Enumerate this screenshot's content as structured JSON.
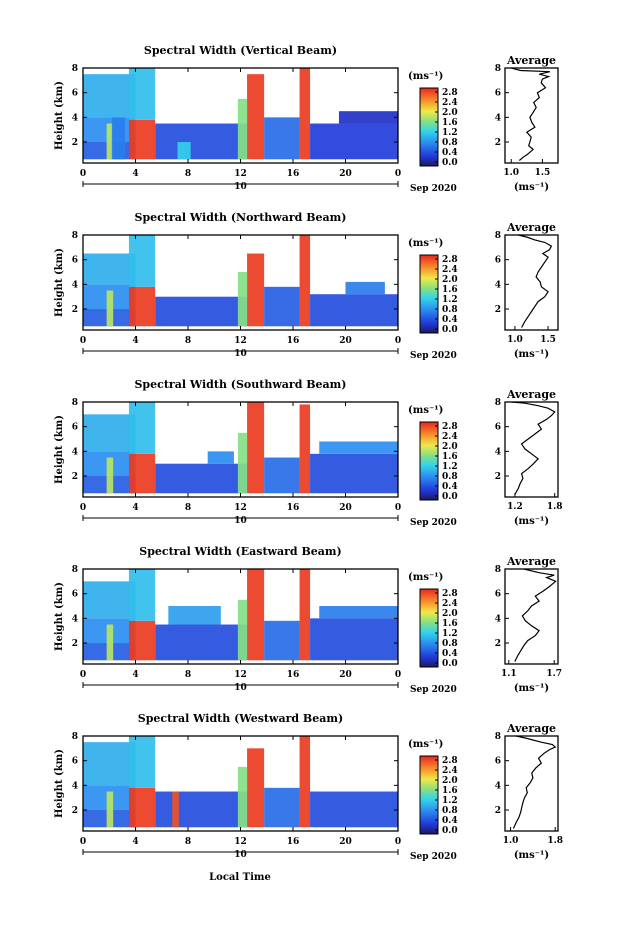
{
  "xlabel": "Local Time",
  "date_label": "Sep 2020",
  "day_label": "10",
  "chart_data": [
    {
      "type": "heatmap",
      "title": "Spectral Width (Vertical Beam)",
      "ylabel": "Height (km)",
      "xticks": [
        "0",
        "4",
        "8",
        "12",
        "16",
        "20",
        "0"
      ],
      "yticks": [
        "2",
        "4",
        "6",
        "8"
      ],
      "xlim": [
        0,
        24
      ],
      "ylim": [
        0.3,
        8
      ],
      "colorbar_unit": "(ms⁻¹)",
      "colorbar_ticks": [
        "0.0",
        "0.4",
        "0.8",
        "1.2",
        "1.6",
        "2.0",
        "2.4",
        "2.8"
      ],
      "clim": [
        0,
        3.0
      ],
      "cells": [
        {
          "t0": 0.0,
          "t1": 4.0,
          "h0": 0.6,
          "h1": 2.0,
          "v": 0.6
        },
        {
          "t0": 0.0,
          "t1": 4.0,
          "h0": 2.0,
          "h1": 4.0,
          "v": 0.9
        },
        {
          "t0": 0.0,
          "t1": 4.0,
          "h0": 4.0,
          "h1": 7.5,
          "v": 1.1
        },
        {
          "t0": 1.8,
          "t1": 2.3,
          "h0": 0.6,
          "h1": 3.5,
          "v": 1.9
        },
        {
          "t0": 2.2,
          "t1": 3.2,
          "h0": 0.6,
          "h1": 4.0,
          "v": 0.8
        },
        {
          "t0": 3.5,
          "t1": 5.5,
          "h0": 0.6,
          "h1": 3.8,
          "v": 2.9
        },
        {
          "t0": 3.5,
          "t1": 5.5,
          "h0": 3.8,
          "h1": 8.0,
          "v": 1.2
        },
        {
          "t0": 5.5,
          "t1": 12.5,
          "h0": 0.6,
          "h1": 3.5,
          "v": 0.5
        },
        {
          "t0": 7.2,
          "t1": 8.2,
          "h0": 0.6,
          "h1": 2.0,
          "v": 1.3
        },
        {
          "t0": 12.5,
          "t1": 13.8,
          "h0": 0.6,
          "h1": 7.5,
          "v": 2.9
        },
        {
          "t0": 11.8,
          "t1": 12.5,
          "h0": 0.6,
          "h1": 5.5,
          "v": 1.7
        },
        {
          "t0": 13.8,
          "t1": 16.5,
          "h0": 0.6,
          "h1": 4.0,
          "v": 0.7
        },
        {
          "t0": 16.5,
          "t1": 17.3,
          "h0": 0.6,
          "h1": 8.0,
          "v": 2.9
        },
        {
          "t0": 17.3,
          "t1": 24.0,
          "h0": 0.6,
          "h1": 3.5,
          "v": 0.4
        },
        {
          "t0": 19.5,
          "t1": 24.0,
          "h0": 3.5,
          "h1": 4.5,
          "v": 0.3
        }
      ],
      "average": {
        "title": "Average",
        "xlabel": "(ms⁻¹)",
        "xticks": [
          "1.0",
          "1.5"
        ],
        "xlim": [
          0.9,
          1.75
        ],
        "ylim": [
          0.3,
          8
        ],
        "x": [
          1.13,
          1.2,
          1.26,
          1.35,
          1.28,
          1.3,
          1.32,
          1.25,
          1.38,
          1.33,
          1.3,
          1.35,
          1.4,
          1.36,
          1.45,
          1.42,
          1.55,
          1.48,
          1.5,
          1.6,
          1.45,
          1.62,
          1.15,
          1.0
        ],
        "y": [
          0.5,
          0.8,
          1.0,
          1.4,
          1.7,
          2.0,
          2.4,
          2.8,
          3.2,
          3.6,
          4.0,
          4.4,
          4.8,
          5.2,
          5.6,
          6.0,
          6.4,
          6.8,
          7.1,
          7.3,
          7.5,
          7.7,
          7.8,
          8.0
        ]
      }
    },
    {
      "type": "heatmap",
      "title": "Spectral Width (Northward Beam)",
      "ylabel": "Height (km)",
      "xticks": [
        "0",
        "4",
        "8",
        "12",
        "16",
        "20",
        "0"
      ],
      "yticks": [
        "2",
        "4",
        "6",
        "8"
      ],
      "xlim": [
        0,
        24
      ],
      "ylim": [
        0.3,
        8
      ],
      "colorbar_unit": "(ms⁻¹)",
      "colorbar_ticks": [
        "0.0",
        "0.4",
        "0.8",
        "1.2",
        "1.6",
        "2.0",
        "2.4",
        "2.8"
      ],
      "clim": [
        0,
        3.0
      ],
      "cells": [
        {
          "t0": 0.0,
          "t1": 4.0,
          "h0": 0.6,
          "h1": 2.0,
          "v": 0.6
        },
        {
          "t0": 0.0,
          "t1": 4.0,
          "h0": 2.0,
          "h1": 4.0,
          "v": 0.9
        },
        {
          "t0": 0.0,
          "t1": 4.0,
          "h0": 4.0,
          "h1": 6.5,
          "v": 1.1
        },
        {
          "t0": 1.8,
          "t1": 2.3,
          "h0": 0.6,
          "h1": 3.5,
          "v": 1.9
        },
        {
          "t0": 3.5,
          "t1": 5.5,
          "h0": 0.6,
          "h1": 3.8,
          "v": 2.9
        },
        {
          "t0": 3.5,
          "t1": 5.5,
          "h0": 3.8,
          "h1": 8.0,
          "v": 1.2
        },
        {
          "t0": 5.5,
          "t1": 12.5,
          "h0": 0.6,
          "h1": 3.0,
          "v": 0.5
        },
        {
          "t0": 12.5,
          "t1": 13.8,
          "h0": 0.6,
          "h1": 6.5,
          "v": 2.9
        },
        {
          "t0": 11.8,
          "t1": 12.5,
          "h0": 0.6,
          "h1": 5.0,
          "v": 1.7
        },
        {
          "t0": 13.8,
          "t1": 16.5,
          "h0": 0.6,
          "h1": 3.8,
          "v": 0.6
        },
        {
          "t0": 16.5,
          "t1": 17.3,
          "h0": 0.6,
          "h1": 8.0,
          "v": 2.9
        },
        {
          "t0": 17.3,
          "t1": 24.0,
          "h0": 0.6,
          "h1": 3.2,
          "v": 0.5
        },
        {
          "t0": 20.0,
          "t1": 23.0,
          "h0": 3.2,
          "h1": 4.2,
          "v": 0.8
        }
      ],
      "average": {
        "title": "Average",
        "xlabel": "(ms⁻¹)",
        "xticks": [
          "1.0",
          "1.5"
        ],
        "xlim": [
          0.85,
          1.65
        ],
        "ylim": [
          0.3,
          8
        ],
        "x": [
          1.1,
          1.15,
          1.2,
          1.25,
          1.3,
          1.35,
          1.45,
          1.5,
          1.4,
          1.38,
          1.32,
          1.35,
          1.4,
          1.45,
          1.5,
          1.42,
          1.52,
          1.55,
          1.45,
          1.3,
          1.2,
          1.05
        ],
        "y": [
          0.5,
          1.0,
          1.4,
          1.8,
          2.2,
          2.6,
          3.0,
          3.4,
          3.8,
          4.2,
          4.6,
          5.0,
          5.4,
          5.8,
          6.2,
          6.5,
          6.8,
          7.1,
          7.4,
          7.6,
          7.8,
          8.0
        ]
      }
    },
    {
      "type": "heatmap",
      "title": "Spectral Width (Southward Beam)",
      "ylabel": "Height (km)",
      "xticks": [
        "0",
        "4",
        "8",
        "12",
        "16",
        "20",
        "0"
      ],
      "yticks": [
        "2",
        "4",
        "6",
        "8"
      ],
      "xlim": [
        0,
        24
      ],
      "ylim": [
        0.3,
        8
      ],
      "colorbar_unit": "(ms⁻¹)",
      "colorbar_ticks": [
        "0.0",
        "0.4",
        "0.8",
        "1.2",
        "1.6",
        "2.0",
        "2.4",
        "2.8"
      ],
      "clim": [
        0,
        3.0
      ],
      "cells": [
        {
          "t0": 0.0,
          "t1": 4.0,
          "h0": 0.6,
          "h1": 2.0,
          "v": 0.6
        },
        {
          "t0": 0.0,
          "t1": 4.0,
          "h0": 2.0,
          "h1": 4.0,
          "v": 0.9
        },
        {
          "t0": 0.0,
          "t1": 4.0,
          "h0": 4.0,
          "h1": 7.0,
          "v": 1.1
        },
        {
          "t0": 1.8,
          "t1": 2.3,
          "h0": 0.6,
          "h1": 3.5,
          "v": 1.9
        },
        {
          "t0": 3.5,
          "t1": 5.5,
          "h0": 0.6,
          "h1": 3.8,
          "v": 2.9
        },
        {
          "t0": 3.5,
          "t1": 5.5,
          "h0": 3.8,
          "h1": 8.0,
          "v": 1.2
        },
        {
          "t0": 5.5,
          "t1": 12.5,
          "h0": 0.6,
          "h1": 3.0,
          "v": 0.5
        },
        {
          "t0": 9.5,
          "t1": 11.5,
          "h0": 3.0,
          "h1": 4.0,
          "v": 0.9
        },
        {
          "t0": 12.5,
          "t1": 13.8,
          "h0": 0.6,
          "h1": 8.0,
          "v": 2.9
        },
        {
          "t0": 11.8,
          "t1": 12.5,
          "h0": 0.6,
          "h1": 5.5,
          "v": 1.7
        },
        {
          "t0": 13.8,
          "t1": 16.5,
          "h0": 0.6,
          "h1": 3.5,
          "v": 0.7
        },
        {
          "t0": 16.5,
          "t1": 17.3,
          "h0": 0.6,
          "h1": 7.8,
          "v": 2.9
        },
        {
          "t0": 17.3,
          "t1": 24.0,
          "h0": 0.6,
          "h1": 3.8,
          "v": 0.5
        },
        {
          "t0": 18.0,
          "t1": 24.0,
          "h0": 3.8,
          "h1": 4.8,
          "v": 0.9
        }
      ],
      "average": {
        "title": "Average",
        "xlabel": "(ms⁻¹)",
        "xticks": [
          "1.2",
          "1.8"
        ],
        "xlim": [
          1.05,
          1.85
        ],
        "ylim": [
          0.3,
          8
        ],
        "x": [
          1.2,
          1.25,
          1.28,
          1.32,
          1.3,
          1.4,
          1.48,
          1.55,
          1.45,
          1.35,
          1.3,
          1.4,
          1.5,
          1.6,
          1.55,
          1.68,
          1.75,
          1.8,
          1.7,
          1.55,
          1.35,
          1.15
        ],
        "y": [
          0.5,
          1.0,
          1.4,
          1.8,
          2.2,
          2.6,
          3.0,
          3.4,
          3.8,
          4.2,
          4.6,
          5.0,
          5.4,
          5.8,
          6.2,
          6.6,
          6.9,
          7.2,
          7.5,
          7.7,
          7.9,
          8.0
        ]
      }
    },
    {
      "type": "heatmap",
      "title": "Spectral Width (Eastward Beam)",
      "ylabel": "Height (km)",
      "xticks": [
        "0",
        "4",
        "8",
        "12",
        "16",
        "20",
        "0"
      ],
      "yticks": [
        "2",
        "4",
        "6",
        "8"
      ],
      "xlim": [
        0,
        24
      ],
      "ylim": [
        0.3,
        8
      ],
      "colorbar_unit": "(ms⁻¹)",
      "colorbar_ticks": [
        "0.0",
        "0.4",
        "0.8",
        "1.2",
        "1.6",
        "2.0",
        "2.4",
        "2.8"
      ],
      "clim": [
        0,
        3.0
      ],
      "cells": [
        {
          "t0": 0.0,
          "t1": 4.0,
          "h0": 0.6,
          "h1": 2.0,
          "v": 0.6
        },
        {
          "t0": 0.0,
          "t1": 4.0,
          "h0": 2.0,
          "h1": 4.0,
          "v": 0.9
        },
        {
          "t0": 0.0,
          "t1": 4.0,
          "h0": 4.0,
          "h1": 7.0,
          "v": 1.1
        },
        {
          "t0": 1.8,
          "t1": 2.3,
          "h0": 0.6,
          "h1": 3.5,
          "v": 1.9
        },
        {
          "t0": 3.5,
          "t1": 5.5,
          "h0": 0.6,
          "h1": 3.8,
          "v": 2.9
        },
        {
          "t0": 3.5,
          "t1": 5.5,
          "h0": 3.8,
          "h1": 8.0,
          "v": 1.2
        },
        {
          "t0": 5.5,
          "t1": 12.5,
          "h0": 0.6,
          "h1": 3.5,
          "v": 0.5
        },
        {
          "t0": 6.5,
          "t1": 10.5,
          "h0": 3.5,
          "h1": 5.0,
          "v": 1.0
        },
        {
          "t0": 12.5,
          "t1": 13.8,
          "h0": 0.6,
          "h1": 8.0,
          "v": 2.9
        },
        {
          "t0": 11.8,
          "t1": 12.5,
          "h0": 0.6,
          "h1": 5.5,
          "v": 1.7
        },
        {
          "t0": 13.8,
          "t1": 16.5,
          "h0": 0.6,
          "h1": 3.8,
          "v": 0.7
        },
        {
          "t0": 16.5,
          "t1": 17.3,
          "h0": 0.6,
          "h1": 8.0,
          "v": 2.9
        },
        {
          "t0": 17.3,
          "t1": 24.0,
          "h0": 0.6,
          "h1": 4.0,
          "v": 0.5
        },
        {
          "t0": 18.0,
          "t1": 24.0,
          "h0": 4.0,
          "h1": 5.0,
          "v": 0.8
        }
      ],
      "average": {
        "title": "Average",
        "xlabel": "(ms⁻¹)",
        "xticks": [
          "1.1",
          "1.7"
        ],
        "xlim": [
          1.05,
          1.75
        ],
        "ylim": [
          0.3,
          8
        ],
        "x": [
          1.18,
          1.22,
          1.26,
          1.3,
          1.35,
          1.45,
          1.5,
          1.4,
          1.32,
          1.28,
          1.35,
          1.4,
          1.5,
          1.45,
          1.55,
          1.62,
          1.68,
          1.72,
          1.6,
          1.7,
          1.5,
          1.3
        ],
        "y": [
          0.5,
          1.0,
          1.4,
          1.8,
          2.2,
          2.6,
          3.0,
          3.4,
          3.8,
          4.2,
          4.6,
          5.0,
          5.4,
          5.8,
          6.2,
          6.5,
          6.8,
          7.0,
          7.3,
          7.5,
          7.7,
          8.0
        ]
      }
    },
    {
      "type": "heatmap",
      "title": "Spectral Width (Westward Beam)",
      "ylabel": "Height (km)",
      "xticks": [
        "0",
        "4",
        "8",
        "12",
        "16",
        "20",
        "0"
      ],
      "yticks": [
        "2",
        "4",
        "6",
        "8"
      ],
      "xlim": [
        0,
        24
      ],
      "ylim": [
        0.3,
        8
      ],
      "colorbar_unit": "(ms⁻¹)",
      "colorbar_ticks": [
        "0.0",
        "0.4",
        "0.8",
        "1.2",
        "1.6",
        "2.0",
        "2.4",
        "2.8"
      ],
      "clim": [
        0,
        3.0
      ],
      "cells": [
        {
          "t0": 0.0,
          "t1": 4.0,
          "h0": 0.6,
          "h1": 2.0,
          "v": 0.6
        },
        {
          "t0": 0.0,
          "t1": 4.0,
          "h0": 2.0,
          "h1": 4.0,
          "v": 0.9
        },
        {
          "t0": 0.0,
          "t1": 4.0,
          "h0": 4.0,
          "h1": 7.5,
          "v": 1.1
        },
        {
          "t0": 1.8,
          "t1": 2.3,
          "h0": 0.6,
          "h1": 3.5,
          "v": 1.9
        },
        {
          "t0": 3.5,
          "t1": 5.5,
          "h0": 0.6,
          "h1": 3.8,
          "v": 2.9
        },
        {
          "t0": 3.5,
          "t1": 5.5,
          "h0": 3.8,
          "h1": 8.0,
          "v": 1.2
        },
        {
          "t0": 5.5,
          "t1": 12.5,
          "h0": 0.6,
          "h1": 3.5,
          "v": 0.5
        },
        {
          "t0": 6.8,
          "t1": 7.3,
          "h0": 0.6,
          "h1": 3.5,
          "v": 2.8
        },
        {
          "t0": 12.5,
          "t1": 13.8,
          "h0": 0.6,
          "h1": 7.0,
          "v": 2.9
        },
        {
          "t0": 11.8,
          "t1": 12.5,
          "h0": 0.6,
          "h1": 5.5,
          "v": 1.7
        },
        {
          "t0": 13.8,
          "t1": 16.5,
          "h0": 0.6,
          "h1": 3.8,
          "v": 0.7
        },
        {
          "t0": 16.5,
          "t1": 17.3,
          "h0": 0.6,
          "h1": 8.0,
          "v": 2.9
        },
        {
          "t0": 17.3,
          "t1": 24.0,
          "h0": 0.6,
          "h1": 3.5,
          "v": 0.5
        }
      ],
      "average": {
        "title": "Average",
        "xlabel": "(ms⁻¹)",
        "xticks": [
          "1.0",
          "1.8"
        ],
        "xlim": [
          0.9,
          1.85
        ],
        "ylim": [
          0.3,
          8
        ],
        "x": [
          1.05,
          1.1,
          1.15,
          1.18,
          1.2,
          1.22,
          1.25,
          1.3,
          1.28,
          1.35,
          1.4,
          1.38,
          1.45,
          1.55,
          1.5,
          1.6,
          1.7,
          1.8,
          1.75,
          1.55,
          1.3,
          1.1
        ],
        "y": [
          0.5,
          1.0,
          1.4,
          1.8,
          2.2,
          2.6,
          3.0,
          3.4,
          3.8,
          4.2,
          4.6,
          5.0,
          5.4,
          5.8,
          6.2,
          6.6,
          6.9,
          7.1,
          7.3,
          7.5,
          7.8,
          8.0
        ]
      }
    }
  ]
}
